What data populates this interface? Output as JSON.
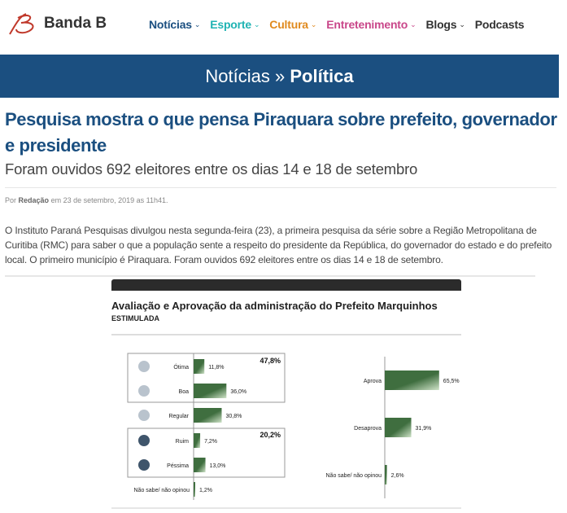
{
  "site": {
    "name": "Banda B"
  },
  "nav": [
    {
      "label": "Notícias",
      "color": "#1b4f80",
      "dropdown": true
    },
    {
      "label": "Esporte",
      "color": "#1fb3b3",
      "dropdown": true
    },
    {
      "label": "Cultura",
      "color": "#e08a1e",
      "dropdown": true
    },
    {
      "label": "Entretenimento",
      "color": "#c9478a",
      "dropdown": true
    },
    {
      "label": "Blogs",
      "color": "#333333",
      "dropdown": true
    },
    {
      "label": "Podcasts",
      "color": "#333333",
      "dropdown": false
    }
  ],
  "breadcrumb": {
    "section": "Notícias",
    "separator": "»",
    "current": "Política"
  },
  "article": {
    "title": "Pesquisa mostra o que pensa Piraquara sobre prefeito, governador e presidente",
    "subtitle": "Foram ouvidos 692 eleitores entre os dias 14 e 18 de setembro",
    "byline_prefix": "Por",
    "author": "Redação",
    "byline_date": "em 23 de setembro, 2019 as 11h41.",
    "body": "O Instituto Paraná Pesquisas divulgou nesta segunda-feira (23), a primeira pesquisa da série sobre a Região Metropolitana de Curitiba (RMC) para saber o que a população sente a respeito do presidente da República, do governador do estado e do prefeito local. O primeiro município é Piraquara. Foram ouvidos 692 eleitores entre os dias 14 e 18 de setembro."
  },
  "chart_data": [
    {
      "type": "bar",
      "title": "Avaliação e Aprovação da administração do Prefeito Marquinhos",
      "subtitle": "ESTIMULADA",
      "categories": [
        "Ótima",
        "Boa",
        "Regular",
        "Ruim",
        "Péssima",
        "Não sabe/ não opinou"
      ],
      "values": [
        11.8,
        36.0,
        30.8,
        7.2,
        13.0,
        1.2
      ],
      "labels": [
        "11,8%",
        "36,0%",
        "30,8%",
        "7,2%",
        "13,0%",
        "1,2%"
      ],
      "groups": [
        {
          "label": "47,8%",
          "members": [
            "Ótima",
            "Boa"
          ]
        },
        {
          "label": "20,2%",
          "members": [
            "Ruim",
            "Péssima"
          ]
        }
      ],
      "bar_color": "#3f6e3f"
    },
    {
      "type": "bar",
      "categories": [
        "Aprova",
        "Desaprova",
        "Não sabe/ não opinou"
      ],
      "values": [
        65.5,
        31.9,
        2.6
      ],
      "labels": [
        "65,5%",
        "31,9%",
        "2,6%"
      ],
      "bar_color": "#3f6e3f"
    }
  ]
}
